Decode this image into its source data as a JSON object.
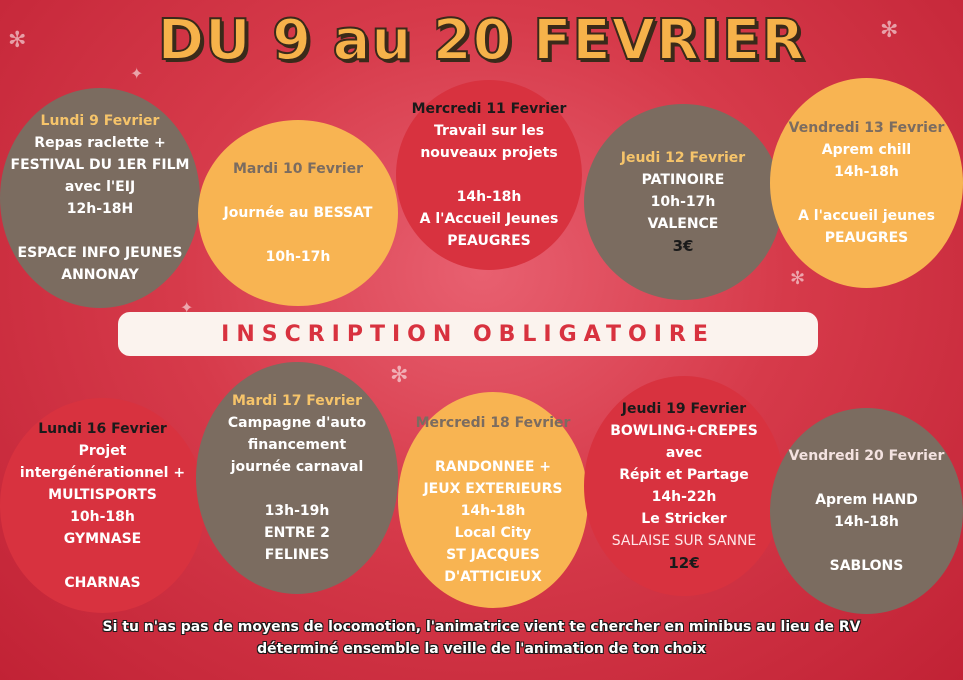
{
  "title": "DU 9 au 20 FEVRIER",
  "banner": "INSCRIPTION OBLIGATOIRE",
  "events": {
    "lun9": {
      "day": "Lundi 9 Fevrier",
      "l1": "Repas raclette +",
      "l2": "FESTIVAL DU 1ER FILM",
      "l3": "avec l'EIJ",
      "l4": "12h-18H",
      "l5": "ESPACE INFO JEUNES",
      "l6": "ANNONAY"
    },
    "mar10": {
      "day": "Mardi 10 Fevrier",
      "l1": "Journée au BESSAT",
      "l2": "10h-17h"
    },
    "mer11": {
      "day": "Mercredi 11 Fevrier",
      "l1": "Travail sur les",
      "l2": "nouveaux projets",
      "l3": "14h-18h",
      "l4": "A l'Accueil Jeunes",
      "l5": "PEAUGRES"
    },
    "jeu12": {
      "day": "Jeudi 12 Fevrier",
      "l1": "PATINOIRE",
      "l2": "10h-17h",
      "l3": "VALENCE",
      "price": "3€"
    },
    "ven13": {
      "day": "Vendredi 13  Fevrier",
      "l1": "Aprem chill",
      "l2": "14h-18h",
      "l3": "A l'accueil jeunes",
      "l4": "PEAUGRES"
    },
    "lun16": {
      "day": "Lundi 16 Fevrier",
      "l1": "Projet",
      "l2": "intergénérationnel +",
      "l3": "MULTISPORTS",
      "l4": "10h-18h",
      "l5": "GYMNASE",
      "l6": "CHARNAS"
    },
    "mar17": {
      "day": "Mardi 17 Fevrier",
      "l1": "Campagne d'auto",
      "l2": "financement",
      "l3": "journée carnaval",
      "l4": "13h-19h",
      "l5": "ENTRE 2",
      "l6": "FELINES"
    },
    "mer18": {
      "day": "Mercredi 18 Fevrier",
      "l1": "RANDONNEE +",
      "l2": "JEUX EXTERIEURS",
      "l3": "14h-18h",
      "l4": "Local City",
      "l5": "ST JACQUES",
      "l6": "D'ATTICIEUX"
    },
    "jeu19": {
      "day": "Jeudi 19 Fevrier",
      "l1": "BOWLING+CREPES avec",
      "l2": "Répit et Partage",
      "l3": "14h-22h",
      "l4": "Le Stricker",
      "l5": "SALAISE SUR SANNE",
      "price": "12€"
    },
    "ven20": {
      "day": "Vendredi 20 Fevrier",
      "l1": "Aprem HAND",
      "l2": "14h-18h",
      "l3": "SABLONS"
    }
  },
  "footer": {
    "line1": "Si tu n'as pas de moyens de locomotion, l'animatrice vient te chercher en minibus au lieu de RV",
    "line2": "déterminé ensemble la veille de l'animation de ton choix"
  }
}
